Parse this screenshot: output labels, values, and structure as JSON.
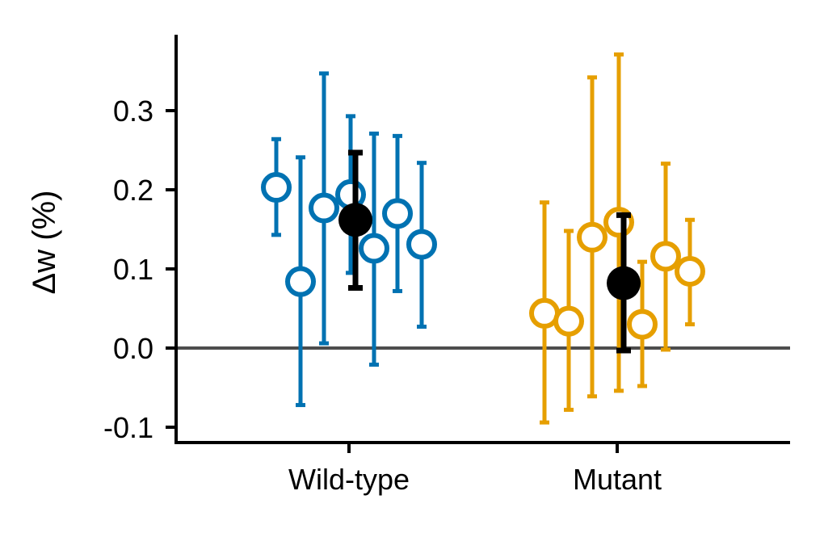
{
  "chart_data": {
    "type": "scatter",
    "title": "",
    "xlabel": "",
    "ylabel": "Δw (%)",
    "categories": [
      "Wild-type",
      "Mutant"
    ],
    "ylim": [
      -0.118,
      0.395
    ],
    "yticks": [
      "-0.1",
      "0.0",
      "0.1",
      "0.2",
      "0.3"
    ],
    "reference_line": 0.0,
    "grid": false,
    "legend": "none",
    "series": [
      {
        "category": "Wild-type",
        "color": "#0072B2",
        "marker": "open-circle",
        "points": [
          {
            "y": 0.203,
            "lo": 0.143,
            "hi": 0.264
          },
          {
            "y": 0.084,
            "lo": -0.072,
            "hi": 0.241
          },
          {
            "y": 0.177,
            "lo": 0.006,
            "hi": 0.347
          },
          {
            "y": 0.194,
            "lo": 0.095,
            "hi": 0.293
          },
          {
            "y": 0.126,
            "lo": -0.021,
            "hi": 0.271
          },
          {
            "y": 0.17,
            "lo": 0.072,
            "hi": 0.268
          },
          {
            "y": 0.131,
            "lo": 0.027,
            "hi": 0.234
          }
        ],
        "mean": {
          "y": 0.162,
          "lo": 0.076,
          "hi": 0.247
        }
      },
      {
        "category": "Mutant",
        "color": "#E69F00",
        "marker": "open-circle",
        "points": [
          {
            "y": 0.044,
            "lo": -0.094,
            "hi": 0.184
          },
          {
            "y": 0.034,
            "lo": -0.078,
            "hi": 0.148
          },
          {
            "y": 0.14,
            "lo": -0.061,
            "hi": 0.342
          },
          {
            "y": 0.159,
            "lo": -0.054,
            "hi": 0.371
          },
          {
            "y": 0.03,
            "lo": -0.048,
            "hi": 0.109
          },
          {
            "y": 0.116,
            "lo": -0.002,
            "hi": 0.233
          },
          {
            "y": 0.097,
            "lo": 0.03,
            "hi": 0.162
          }
        ],
        "mean": {
          "y": 0.082,
          "lo": -0.003,
          "hi": 0.168
        }
      }
    ],
    "mean_color": "#000000",
    "zero_line_color": "#4d4d4d"
  }
}
